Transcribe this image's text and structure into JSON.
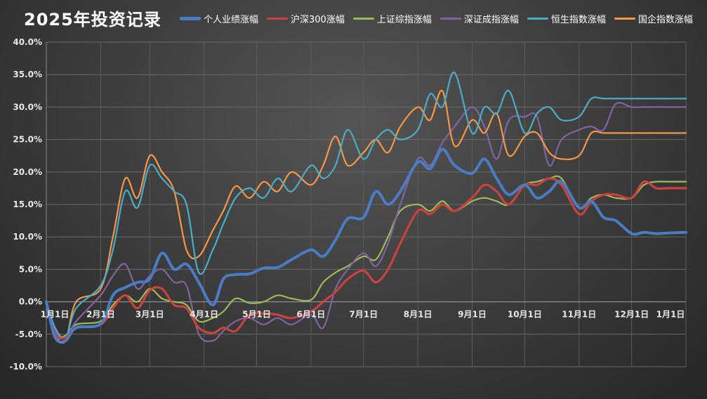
{
  "chart_data": {
    "type": "line",
    "title": "2025年投资记录",
    "xlabel": "",
    "ylabel": "",
    "ylim": [
      -10,
      40
    ],
    "y_ticks": [
      "40.0%",
      "35.0%",
      "30.0%",
      "25.0%",
      "20.0%",
      "15.0%",
      "10.0%",
      "5.0%",
      "0.0%",
      "-5.0%",
      "-10.0%"
    ],
    "x_ticks": [
      "1月1日",
      "2月1日",
      "3月1日",
      "4月1日",
      "5月1日",
      "6月1日",
      "7月1日",
      "8月1日",
      "9月1日",
      "10月1日",
      "11月1日",
      "12月1日",
      "1月1日"
    ],
    "x": [
      "2025-01-01",
      "2025-01-06",
      "2025-01-12",
      "2025-01-18",
      "2025-02-01",
      "2025-02-08",
      "2025-02-15",
      "2025-02-22",
      "2025-03-01",
      "2025-03-08",
      "2025-03-15",
      "2025-03-22",
      "2025-03-29",
      "2025-04-06",
      "2025-04-12",
      "2025-04-19",
      "2025-04-27",
      "2025-05-05",
      "2025-05-13",
      "2025-05-21",
      "2025-06-01",
      "2025-06-08",
      "2025-06-15",
      "2025-06-22",
      "2025-07-01",
      "2025-07-08",
      "2025-07-15",
      "2025-07-22",
      "2025-08-01",
      "2025-08-08",
      "2025-08-15",
      "2025-08-22",
      "2025-09-01",
      "2025-09-08",
      "2025-09-15",
      "2025-09-22",
      "2025-10-01",
      "2025-10-08",
      "2025-10-15",
      "2025-10-22",
      "2025-11-01",
      "2025-11-08",
      "2025-11-15",
      "2025-11-22",
      "2025-12-01",
      "2025-12-08",
      "2025-12-15",
      "2025-12-22",
      "2026-01-01"
    ],
    "legend": "top",
    "grid": true,
    "series": [
      {
        "name": "个人业绩涨幅",
        "color": "#4a7cc6",
        "values": [
          0,
          -5.5,
          -6,
          -4,
          -3.4,
          1,
          2.2,
          3,
          3.5,
          7.5,
          5,
          5.8,
          3,
          -0.5,
          3.5,
          4.2,
          4.3,
          5.2,
          5.3,
          6.5,
          8,
          7,
          9.5,
          12.8,
          13,
          17,
          15,
          17,
          21.5,
          20.5,
          23.5,
          21,
          19.8,
          22,
          19,
          16.5,
          18,
          16,
          17,
          18.5,
          14.5,
          15.5,
          13,
          12.5,
          10.5,
          10.7,
          10.5,
          10.6,
          10.7
        ]
      },
      {
        "name": "沪深300涨幅",
        "color": "#c9423e",
        "values": [
          0,
          -5,
          -5.5,
          -4,
          -3.5,
          -1,
          1,
          -1,
          1.8,
          2,
          -0.5,
          -1,
          -4,
          -4.8,
          -4,
          -4.5,
          -2,
          -1.8,
          -2,
          -2.5,
          -1.5,
          0,
          1.5,
          3.5,
          4.8,
          3,
          5,
          9,
          14,
          13.5,
          15,
          14,
          16,
          18,
          17,
          15,
          18,
          18,
          19,
          18,
          13.5,
          15.5,
          16.5,
          16.5,
          16,
          18.5,
          17.5,
          17.5,
          17.5
        ]
      },
      {
        "name": "上证综指涨幅",
        "color": "#9bbb59",
        "values": [
          0,
          -5,
          -5.2,
          -3.5,
          -3,
          -0.5,
          1,
          0,
          2,
          0.5,
          0,
          -0.5,
          -3,
          -2.5,
          -1.5,
          0.5,
          -0.2,
          0,
          1,
          0.5,
          0.3,
          3,
          4.5,
          5.5,
          7,
          6.5,
          10,
          14,
          15,
          14,
          15.5,
          14,
          15.5,
          16,
          15.5,
          15,
          18,
          18.5,
          19,
          19,
          14.5,
          16,
          16.5,
          16,
          16,
          18,
          18.5,
          18.5,
          18.5
        ]
      },
      {
        "name": "深证成指涨幅",
        "color": "#8064a2",
        "values": [
          0,
          -4.5,
          -5.5,
          -3,
          1,
          4,
          5.8,
          2,
          4,
          5,
          3,
          2.5,
          -5,
          -6,
          -4.5,
          -3,
          -2.5,
          -3.5,
          -2.5,
          -3.5,
          -2,
          -4,
          2,
          5,
          7.5,
          5.5,
          9,
          15,
          22,
          21,
          24.5,
          27,
          30,
          27,
          22,
          28,
          28.5,
          28.5,
          21,
          25,
          26.5,
          27,
          26.5,
          30.5,
          30,
          30,
          30,
          30,
          30
        ]
      },
      {
        "name": "恒生指数涨幅",
        "color": "#4bacc6",
        "values": [
          0,
          -4,
          -5.5,
          -1,
          2.5,
          8,
          17,
          14.5,
          21,
          19,
          17,
          15,
          4.5,
          8,
          12,
          16,
          17.5,
          16,
          19,
          17,
          21,
          19,
          21,
          26.5,
          22,
          25,
          26.5,
          25,
          26.5,
          32,
          30,
          35.3,
          26,
          30,
          29,
          32.5,
          26,
          29,
          30,
          28,
          28.5,
          31.3,
          31.3,
          31.3,
          31.3,
          31.3,
          31.3,
          31.3,
          31.3
        ]
      },
      {
        "name": "国企指数涨幅",
        "color": "#f79646",
        "values": [
          0,
          -5,
          -6,
          0,
          2,
          10,
          19,
          16,
          22.5,
          20,
          17,
          8,
          7,
          11,
          14,
          17.8,
          16,
          18.5,
          17,
          20,
          18,
          21,
          25.5,
          21,
          23,
          25,
          23,
          27,
          30,
          28,
          32.5,
          24,
          28,
          26,
          29,
          22.5,
          25.5,
          26,
          23,
          22,
          22.5,
          26,
          26,
          26,
          26,
          26,
          26,
          26,
          26
        ]
      }
    ]
  }
}
